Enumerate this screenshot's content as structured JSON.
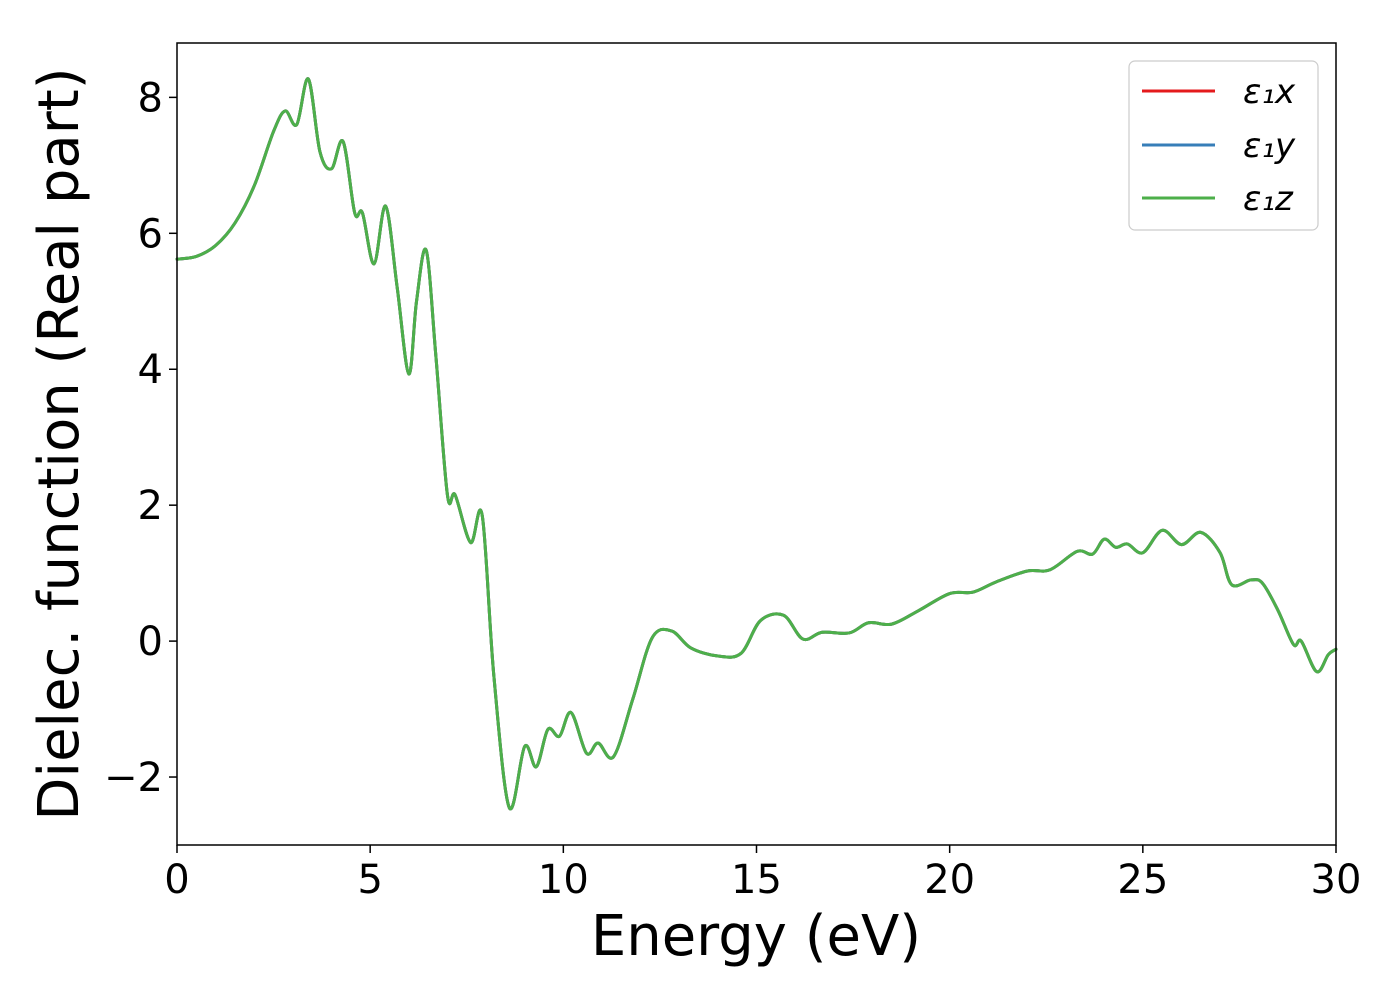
{
  "chart_data": {
    "type": "line",
    "xlabel": "Energy (eV)",
    "ylabel": "Dielec. function (Real part)",
    "xlim": [
      0,
      30
    ],
    "ylim": [
      -3,
      8.8
    ],
    "xticks": [
      0,
      5,
      10,
      15,
      20,
      25,
      30
    ],
    "xtick_labels": [
      "0",
      "5",
      "10",
      "15",
      "20",
      "25",
      "30"
    ],
    "yticks": [
      -2,
      0,
      2,
      4,
      6,
      8
    ],
    "ytick_labels": [
      "−2",
      "0",
      "2",
      "4",
      "6",
      "8"
    ],
    "grid": false,
    "legend": {
      "placement": "top-right"
    },
    "x": [
      0,
      0.5,
      1.0,
      1.5,
      2.0,
      2.5,
      2.8,
      3.1,
      3.4,
      3.7,
      4.0,
      4.3,
      4.6,
      4.8,
      5.1,
      5.4,
      5.7,
      6.0,
      6.2,
      6.45,
      6.7,
      7.0,
      7.2,
      7.6,
      7.9,
      8.2,
      8.6,
      9.0,
      9.3,
      9.6,
      9.9,
      10.2,
      10.6,
      10.9,
      11.3,
      11.8,
      12.3,
      12.8,
      13.3,
      14.0,
      14.6,
      15.1,
      15.7,
      16.2,
      16.7,
      17.4,
      17.9,
      18.5,
      19.2,
      20.0,
      20.6,
      21.2,
      22.0,
      22.6,
      23.3,
      23.7,
      24.0,
      24.3,
      24.6,
      25.0,
      25.5,
      26.0,
      26.5,
      27.0,
      27.3,
      27.8,
      28.1,
      28.5,
      28.9,
      29.1,
      29.5,
      29.8,
      30.0
    ],
    "series": [
      {
        "name": "ε₁x",
        "color": "#e41a1c",
        "y": [
          5.62,
          5.66,
          5.82,
          6.15,
          6.7,
          7.5,
          7.8,
          7.6,
          8.27,
          7.2,
          6.95,
          7.35,
          6.3,
          6.3,
          5.55,
          6.4,
          5.2,
          3.93,
          5.0,
          5.75,
          4.2,
          2.15,
          2.15,
          1.45,
          1.85,
          -0.5,
          -2.45,
          -1.55,
          -1.85,
          -1.3,
          -1.4,
          -1.05,
          -1.65,
          -1.5,
          -1.7,
          -0.85,
          0.05,
          0.15,
          -0.1,
          -0.22,
          -0.18,
          0.3,
          0.38,
          0.03,
          0.13,
          0.12,
          0.27,
          0.25,
          0.45,
          0.7,
          0.72,
          0.87,
          1.03,
          1.05,
          1.32,
          1.28,
          1.5,
          1.38,
          1.43,
          1.3,
          1.63,
          1.42,
          1.6,
          1.3,
          0.83,
          0.9,
          0.85,
          0.45,
          -0.05,
          0.0,
          -0.45,
          -0.2,
          -0.12
        ]
      },
      {
        "name": "ε₁y",
        "color": "#377eb8",
        "y": [
          5.62,
          5.66,
          5.82,
          6.15,
          6.7,
          7.5,
          7.8,
          7.6,
          8.27,
          7.2,
          6.95,
          7.35,
          6.3,
          6.3,
          5.55,
          6.4,
          5.2,
          3.93,
          5.0,
          5.75,
          4.2,
          2.15,
          2.15,
          1.45,
          1.85,
          -0.5,
          -2.45,
          -1.55,
          -1.85,
          -1.3,
          -1.4,
          -1.05,
          -1.65,
          -1.5,
          -1.7,
          -0.85,
          0.05,
          0.15,
          -0.1,
          -0.22,
          -0.18,
          0.3,
          0.38,
          0.03,
          0.13,
          0.12,
          0.27,
          0.25,
          0.45,
          0.7,
          0.72,
          0.87,
          1.03,
          1.05,
          1.32,
          1.28,
          1.5,
          1.38,
          1.43,
          1.3,
          1.63,
          1.42,
          1.6,
          1.3,
          0.83,
          0.9,
          0.85,
          0.45,
          -0.05,
          0.0,
          -0.45,
          -0.2,
          -0.12
        ]
      },
      {
        "name": "ε₁z",
        "color": "#4daf4a",
        "y": [
          5.62,
          5.66,
          5.82,
          6.15,
          6.7,
          7.5,
          7.8,
          7.6,
          8.27,
          7.2,
          6.95,
          7.35,
          6.3,
          6.3,
          5.55,
          6.4,
          5.2,
          3.93,
          5.0,
          5.75,
          4.2,
          2.15,
          2.15,
          1.45,
          1.85,
          -0.5,
          -2.45,
          -1.55,
          -1.85,
          -1.3,
          -1.4,
          -1.05,
          -1.65,
          -1.5,
          -1.7,
          -0.85,
          0.05,
          0.15,
          -0.1,
          -0.22,
          -0.18,
          0.3,
          0.38,
          0.03,
          0.13,
          0.12,
          0.27,
          0.25,
          0.45,
          0.7,
          0.72,
          0.87,
          1.03,
          1.05,
          1.32,
          1.28,
          1.5,
          1.38,
          1.43,
          1.3,
          1.63,
          1.42,
          1.6,
          1.3,
          0.83,
          0.9,
          0.85,
          0.45,
          -0.05,
          0.0,
          -0.45,
          -0.2,
          -0.12
        ]
      }
    ]
  }
}
